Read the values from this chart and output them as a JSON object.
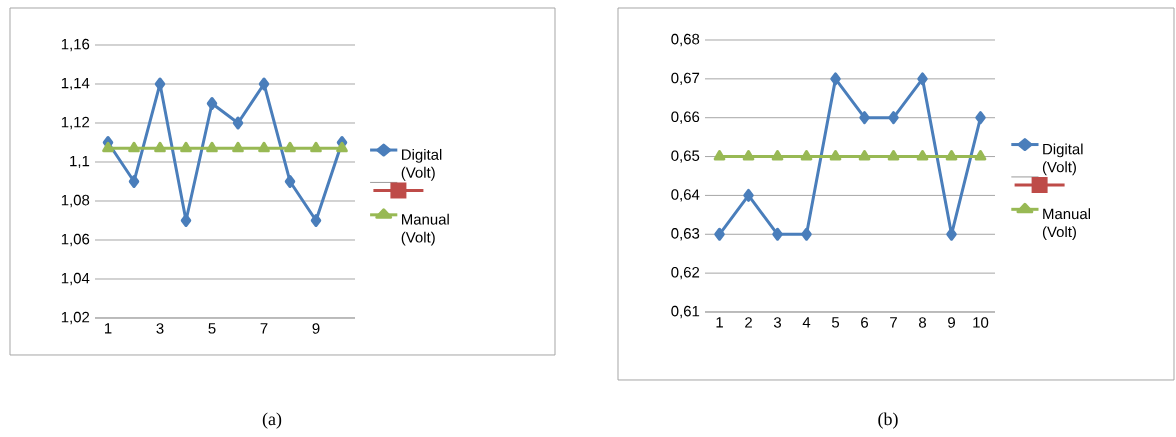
{
  "chart_data": [
    {
      "type": "line",
      "title": "(a)",
      "categories": [
        "1",
        null,
        "3",
        null,
        "5",
        null,
        "7",
        null,
        "9",
        null
      ],
      "series": [
        {
          "name": "Digital (Volt)",
          "color": "#4a7ebb",
          "marker": "diamond",
          "values": [
            1.11,
            1.09,
            1.14,
            1.07,
            1.13,
            1.12,
            1.14,
            1.09,
            1.07,
            1.11
          ]
        },
        {
          "color": "#be4b48",
          "marker": "square",
          "values": [
            null,
            null,
            null,
            null,
            null,
            null,
            null,
            null,
            null,
            null
          ]
        },
        {
          "name": "Manual (Volt)",
          "color": "#98b954",
          "marker": "triangle",
          "values": [
            1.107,
            1.107,
            1.107,
            1.107,
            1.107,
            1.107,
            1.107,
            1.107,
            1.107,
            1.107
          ]
        }
      ],
      "ylim": [
        1.02,
        1.16
      ],
      "yticks": [
        {
          "value": 1.02,
          "label": "1,02"
        },
        {
          "value": 1.04,
          "label": "1,04"
        },
        {
          "value": 1.06,
          "label": "1,06"
        },
        {
          "value": 1.08,
          "label": "1,08"
        },
        {
          "value": 1.1,
          "label": "1,1"
        },
        {
          "value": 1.12,
          "label": "1,12"
        },
        {
          "value": 1.14,
          "label": "1,14"
        },
        {
          "value": 1.16,
          "label": "1,16"
        }
      ],
      "grid": "y",
      "legend": "right"
    },
    {
      "type": "line",
      "title": "(b)",
      "categories": [
        "1",
        "2",
        "3",
        "4",
        "5",
        "6",
        "7",
        "8",
        "9",
        "10"
      ],
      "series": [
        {
          "name": "Digital (Volt)",
          "color": "#4a7ebb",
          "marker": "diamond",
          "values": [
            0.63,
            0.64,
            0.63,
            0.63,
            0.67,
            0.66,
            0.66,
            0.67,
            0.63,
            0.66
          ]
        },
        {
          "color": "#be4b48",
          "marker": "square",
          "values": [
            null,
            null,
            null,
            null,
            null,
            null,
            null,
            null,
            null,
            null
          ]
        },
        {
          "name": "Manual (Volt)",
          "color": "#98b954",
          "marker": "triangle",
          "values": [
            0.65,
            0.65,
            0.65,
            0.65,
            0.65,
            0.65,
            0.65,
            0.65,
            0.65,
            0.65
          ]
        }
      ],
      "ylim": [
        0.61,
        0.68
      ],
      "yticks": [
        {
          "value": 0.61,
          "label": "0,61"
        },
        {
          "value": 0.62,
          "label": "0,62"
        },
        {
          "value": 0.63,
          "label": "0,63"
        },
        {
          "value": 0.64,
          "label": "0,64"
        },
        {
          "value": 0.65,
          "label": "0,65"
        },
        {
          "value": 0.66,
          "label": "0,66"
        },
        {
          "value": 0.67,
          "label": "0,67"
        },
        {
          "value": 0.68,
          "label": "0,68"
        }
      ],
      "grid": "y",
      "legend": "right"
    }
  ]
}
